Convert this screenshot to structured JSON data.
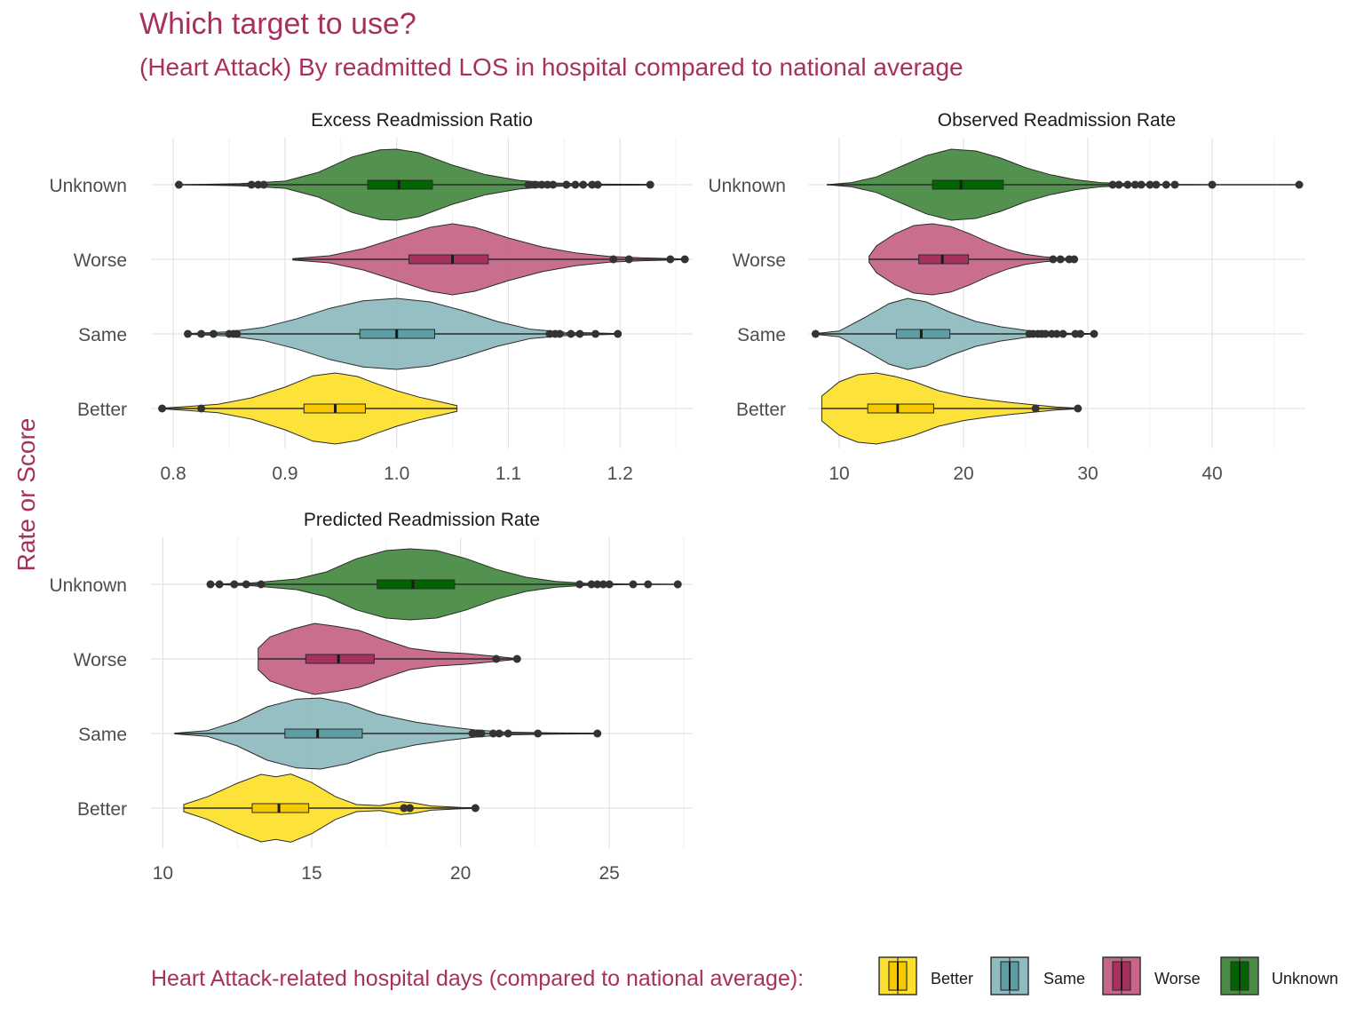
{
  "title": "Which target to use?",
  "subtitle": "(Heart Attack) By readmitted LOS in hospital compared to national average",
  "ylabel": "Rate or Score",
  "legend": {
    "title": "Heart Attack-related hospital days (compared to national average):",
    "placement": "bottom",
    "items": [
      {
        "label": "Better",
        "fill": "#FDE02F",
        "box": "#F5C800"
      },
      {
        "label": "Same",
        "fill": "#8FBCBF",
        "box": "#5C9EA4"
      },
      {
        "label": "Worse",
        "fill": "#C7668A",
        "box": "#A8305E"
      },
      {
        "label": "Unknown",
        "fill": "#4A8C45",
        "box": "#006400"
      }
    ]
  },
  "chart_data": [
    {
      "type": "violin",
      "title": "Excess Readmission Ratio",
      "categories": [
        "Better",
        "Same",
        "Worse",
        "Unknown"
      ],
      "xlim": [
        0.78,
        1.265
      ],
      "xticks": [
        0.8,
        0.9,
        1.0,
        1.1,
        1.2
      ],
      "xtick_labels": [
        "0.8",
        "0.9",
        "1.0",
        "1.1",
        "1.2"
      ],
      "grid": true,
      "series": [
        {
          "name": "Better",
          "min": 0.79,
          "q1": 0.917,
          "median": 0.945,
          "q3": 0.972,
          "max": 1.054,
          "density": [
            [
              0.79,
              0.01
            ],
            [
              0.81,
              0.05
            ],
            [
              0.84,
              0.12
            ],
            [
              0.87,
              0.3
            ],
            [
              0.9,
              0.6
            ],
            [
              0.925,
              0.92
            ],
            [
              0.945,
              1.0
            ],
            [
              0.965,
              0.9
            ],
            [
              0.98,
              0.72
            ],
            [
              1.0,
              0.5
            ],
            [
              1.02,
              0.32
            ],
            [
              1.04,
              0.18
            ],
            [
              1.054,
              0.08
            ]
          ],
          "outliers": [
            0.79,
            0.825
          ]
        },
        {
          "name": "Same",
          "min": 0.813,
          "q1": 0.967,
          "median": 1.0,
          "q3": 1.034,
          "max": 1.198,
          "density": [
            [
              0.813,
              0.01
            ],
            [
              0.85,
              0.06
            ],
            [
              0.88,
              0.18
            ],
            [
              0.91,
              0.42
            ],
            [
              0.94,
              0.72
            ],
            [
              0.97,
              0.93
            ],
            [
              1.0,
              1.0
            ],
            [
              1.03,
              0.9
            ],
            [
              1.06,
              0.65
            ],
            [
              1.09,
              0.35
            ],
            [
              1.12,
              0.13
            ],
            [
              1.15,
              0.05
            ],
            [
              1.198,
              0.01
            ]
          ],
          "outliers": [
            0.813,
            0.825,
            0.836,
            0.85,
            0.854,
            0.857,
            1.137,
            1.142,
            1.146,
            1.156,
            1.164,
            1.178,
            1.198
          ]
        },
        {
          "name": "Worse",
          "min": 0.907,
          "q1": 1.011,
          "median": 1.05,
          "q3": 1.082,
          "max": 1.258,
          "density": [
            [
              0.907,
              0.02
            ],
            [
              0.94,
              0.1
            ],
            [
              0.97,
              0.3
            ],
            [
              1.0,
              0.6
            ],
            [
              1.03,
              0.9
            ],
            [
              1.05,
              1.0
            ],
            [
              1.07,
              0.9
            ],
            [
              1.1,
              0.6
            ],
            [
              1.13,
              0.35
            ],
            [
              1.16,
              0.18
            ],
            [
              1.19,
              0.08
            ],
            [
              1.22,
              0.04
            ],
            [
              1.258,
              0.01
            ]
          ],
          "outliers": [
            1.194,
            1.208,
            1.245,
            1.258
          ]
        },
        {
          "name": "Unknown",
          "min": 0.805,
          "q1": 0.974,
          "median": 1.002,
          "q3": 1.032,
          "max": 1.227,
          "density": [
            [
              0.805,
              0.0
            ],
            [
              0.86,
              0.03
            ],
            [
              0.9,
              0.1
            ],
            [
              0.93,
              0.35
            ],
            [
              0.96,
              0.78
            ],
            [
              0.985,
              0.98
            ],
            [
              1.0,
              1.0
            ],
            [
              1.02,
              0.9
            ],
            [
              1.05,
              0.55
            ],
            [
              1.08,
              0.28
            ],
            [
              1.11,
              0.12
            ],
            [
              1.14,
              0.05
            ],
            [
              1.17,
              0.02
            ],
            [
              1.227,
              0.01
            ]
          ],
          "outliers": [
            0.805,
            0.87,
            0.876,
            0.881,
            1.118,
            1.124,
            1.13,
            1.135,
            1.14,
            1.152,
            1.16,
            1.167,
            1.175,
            1.18,
            1.227
          ]
        }
      ]
    },
    {
      "type": "violin",
      "title": "Observed Readmission Rate",
      "categories": [
        "Better",
        "Same",
        "Worse",
        "Unknown"
      ],
      "xlim": [
        7.5,
        47.5
      ],
      "xticks": [
        10,
        20,
        30,
        40
      ],
      "xtick_labels": [
        "10",
        "20",
        "30",
        "40"
      ],
      "grid": true,
      "series": [
        {
          "name": "Better",
          "min": 8.6,
          "q1": 12.3,
          "median": 14.7,
          "q3": 17.6,
          "max": 29.2,
          "density": [
            [
              8.6,
              0.35
            ],
            [
              10,
              0.75
            ],
            [
              11.5,
              0.95
            ],
            [
              13,
              1.0
            ],
            [
              14.5,
              0.9
            ],
            [
              16,
              0.76
            ],
            [
              18,
              0.5
            ],
            [
              20,
              0.34
            ],
            [
              22,
              0.24
            ],
            [
              24,
              0.16
            ],
            [
              26,
              0.09
            ],
            [
              27.5,
              0.04
            ],
            [
              29.2,
              0.01
            ]
          ],
          "outliers": [
            25.8,
            29.2
          ]
        },
        {
          "name": "Same",
          "min": 8.1,
          "q1": 14.6,
          "median": 16.6,
          "q3": 18.9,
          "max": 30.5,
          "density": [
            [
              8.1,
              0.01
            ],
            [
              10,
              0.08
            ],
            [
              12,
              0.45
            ],
            [
              14,
              0.85
            ],
            [
              15.5,
              1.0
            ],
            [
              17,
              0.9
            ],
            [
              19,
              0.6
            ],
            [
              21,
              0.35
            ],
            [
              23,
              0.2
            ],
            [
              25,
              0.1
            ],
            [
              27,
              0.05
            ],
            [
              28.5,
              0.02
            ],
            [
              30.5,
              0.01
            ]
          ],
          "outliers": [
            8.1,
            25.3,
            25.6,
            26.0,
            26.3,
            26.6,
            27.1,
            27.5,
            28.0,
            29.0,
            29.4,
            30.5
          ]
        },
        {
          "name": "Worse",
          "min": 12.4,
          "q1": 16.4,
          "median": 18.3,
          "q3": 20.4,
          "max": 29.0,
          "density": [
            [
              12.4,
              0.08
            ],
            [
              13,
              0.38
            ],
            [
              14.5,
              0.72
            ],
            [
              16,
              0.95
            ],
            [
              17.5,
              1.0
            ],
            [
              19,
              0.92
            ],
            [
              20.5,
              0.72
            ],
            [
              22,
              0.48
            ],
            [
              23.5,
              0.28
            ],
            [
              25,
              0.14
            ],
            [
              26.5,
              0.07
            ],
            [
              28,
              0.03
            ],
            [
              29,
              0.01
            ]
          ],
          "outliers": [
            27.2,
            27.8,
            28.5,
            28.9
          ]
        },
        {
          "name": "Unknown",
          "min": 9.0,
          "q1": 17.5,
          "median": 19.8,
          "q3": 23.2,
          "max": 47.0,
          "density": [
            [
              9.0,
              0.0
            ],
            [
              11,
              0.06
            ],
            [
              13,
              0.22
            ],
            [
              15,
              0.52
            ],
            [
              17,
              0.82
            ],
            [
              19,
              1.0
            ],
            [
              21,
              0.95
            ],
            [
              23,
              0.75
            ],
            [
              25,
              0.48
            ],
            [
              27,
              0.28
            ],
            [
              29,
              0.14
            ],
            [
              31,
              0.06
            ],
            [
              33,
              0.03
            ],
            [
              36,
              0.01
            ],
            [
              40,
              0.0
            ],
            [
              47,
              0.0
            ]
          ],
          "outliers": [
            32.0,
            32.5,
            33.2,
            33.8,
            34.3,
            35.0,
            35.5,
            36.3,
            37.0,
            40.0,
            47.0
          ]
        }
      ]
    },
    {
      "type": "violin",
      "title": "Predicted Readmission Rate",
      "categories": [
        "Better",
        "Same",
        "Worse",
        "Unknown"
      ],
      "xlim": [
        9.6,
        27.8
      ],
      "xticks": [
        10,
        15,
        20,
        25
      ],
      "xtick_labels": [
        "10",
        "15",
        "20",
        "25"
      ],
      "grid": true,
      "series": [
        {
          "name": "Better",
          "min": 10.7,
          "q1": 13.0,
          "median": 13.9,
          "q3": 14.9,
          "max": 20.5,
          "density": [
            [
              10.7,
              0.1
            ],
            [
              11.5,
              0.32
            ],
            [
              12.5,
              0.7
            ],
            [
              13.3,
              0.95
            ],
            [
              13.8,
              0.88
            ],
            [
              14.3,
              0.96
            ],
            [
              15,
              0.72
            ],
            [
              15.8,
              0.32
            ],
            [
              16.5,
              0.1
            ],
            [
              17.3,
              0.07
            ],
            [
              18,
              0.18
            ],
            [
              18.4,
              0.15
            ],
            [
              19,
              0.06
            ],
            [
              20,
              0.02
            ],
            [
              20.5,
              0.01
            ]
          ],
          "outliers": [
            18.1,
            18.3,
            20.5
          ]
        },
        {
          "name": "Same",
          "min": 10.4,
          "q1": 14.1,
          "median": 15.2,
          "q3": 16.7,
          "max": 24.6,
          "density": [
            [
              10.4,
              0.01
            ],
            [
              11.5,
              0.08
            ],
            [
              12.5,
              0.35
            ],
            [
              13.5,
              0.75
            ],
            [
              14.5,
              0.97
            ],
            [
              15.3,
              1.0
            ],
            [
              16.2,
              0.85
            ],
            [
              17.2,
              0.55
            ],
            [
              18.5,
              0.32
            ],
            [
              19.5,
              0.2
            ],
            [
              20.5,
              0.1
            ],
            [
              21.5,
              0.04
            ],
            [
              23,
              0.02
            ],
            [
              24.6,
              0.01
            ]
          ],
          "outliers": [
            20.4,
            20.6,
            20.7,
            21.1,
            21.3,
            21.6,
            22.6,
            24.6
          ]
        },
        {
          "name": "Worse",
          "min": 13.2,
          "q1": 14.8,
          "median": 15.9,
          "q3": 17.1,
          "max": 21.9,
          "density": [
            [
              13.2,
              0.3
            ],
            [
              13.6,
              0.62
            ],
            [
              14.4,
              0.85
            ],
            [
              15.1,
              1.0
            ],
            [
              15.8,
              0.92
            ],
            [
              16.6,
              0.8
            ],
            [
              17.4,
              0.55
            ],
            [
              18.3,
              0.3
            ],
            [
              19.2,
              0.2
            ],
            [
              20.2,
              0.15
            ],
            [
              21.2,
              0.07
            ],
            [
              21.9,
              0.01
            ]
          ],
          "outliers": [
            21.2,
            21.9
          ]
        },
        {
          "name": "Unknown",
          "min": 11.6,
          "q1": 17.2,
          "median": 18.4,
          "q3": 19.8,
          "max": 27.3,
          "density": [
            [
              11.6,
              0.0
            ],
            [
              13,
              0.04
            ],
            [
              14.5,
              0.15
            ],
            [
              15.5,
              0.35
            ],
            [
              16.5,
              0.72
            ],
            [
              17.5,
              0.95
            ],
            [
              18.3,
              1.0
            ],
            [
              19.2,
              0.95
            ],
            [
              20.2,
              0.72
            ],
            [
              21.2,
              0.42
            ],
            [
              22.2,
              0.2
            ],
            [
              23.2,
              0.08
            ],
            [
              24.2,
              0.03
            ],
            [
              25.5,
              0.01
            ],
            [
              27.3,
              0.0
            ]
          ],
          "outliers": [
            11.6,
            11.9,
            12.4,
            12.8,
            13.3,
            24.0,
            24.4,
            24.6,
            24.8,
            25.0,
            25.8,
            26.3,
            27.3
          ]
        }
      ]
    }
  ]
}
